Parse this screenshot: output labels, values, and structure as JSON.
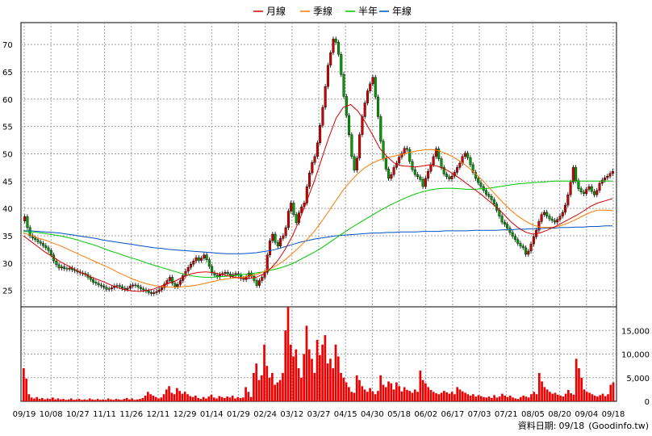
{
  "chart_data": {
    "type": "candlestick",
    "legend": [
      {
        "name": "月線",
        "color": "#d40000"
      },
      {
        "name": "季線",
        "color": "#ff7a00"
      },
      {
        "name": "半年",
        "color": "#00c800"
      },
      {
        "name": "年線",
        "color": "#0050c8"
      }
    ],
    "price_axis": {
      "ticks": [
        "25",
        "30",
        "35",
        "40",
        "45",
        "50",
        "55",
        "60",
        "65",
        "70"
      ],
      "range": [
        22,
        74
      ]
    },
    "volume_axis": {
      "ticks": [
        "0",
        "5,000",
        "10,000",
        "15,000"
      ],
      "range": [
        0,
        20000
      ]
    },
    "x_labels": [
      "09/19",
      "10/08",
      "10/27",
      "11/11",
      "11/26",
      "12/11",
      "12/29",
      "01/14",
      "01/29",
      "02/24",
      "03/12",
      "03/27",
      "04/15",
      "04/30",
      "05/18",
      "06/02",
      "06/17",
      "07/03",
      "07/21",
      "08/05",
      "08/20",
      "09/04",
      "09/18"
    ],
    "close": [
      38.5,
      36.5,
      35.0,
      34.6,
      34.3,
      33.9,
      33.6,
      33.2,
      32.8,
      32.3,
      31.5,
      30.4,
      29.7,
      29.1,
      29.3,
      29.0,
      28.9,
      29.1,
      28.8,
      28.6,
      28.4,
      28.2,
      28.1,
      27.9,
      27.4,
      27.0,
      26.5,
      26.3,
      26.0,
      25.8,
      25.6,
      25.2,
      25.3,
      25.5,
      25.8,
      25.9,
      25.7,
      25.4,
      25.2,
      25.4,
      25.8,
      26.0,
      25.9,
      25.6,
      25.3,
      25.1,
      24.9,
      24.6,
      24.4,
      24.6,
      24.8,
      25.1,
      25.5,
      26.2,
      26.8,
      27.4,
      26.3,
      25.7,
      26.1,
      26.8,
      27.7,
      28.5,
      29.2,
      29.8,
      30.4,
      31.0,
      30.5,
      30.9,
      31.5,
      30.6,
      29.4,
      28.2,
      27.8,
      27.5,
      27.9,
      28.1,
      28.3,
      28.0,
      27.6,
      27.9,
      28.1,
      27.8,
      27.2,
      27.0,
      27.5,
      28.2,
      27.6,
      26.8,
      25.9,
      26.8,
      27.4,
      28.3,
      31.5,
      34.1,
      35.3,
      33.8,
      33.1,
      34.5,
      35.0,
      36.5,
      39.5,
      41.0,
      38.9,
      37.4,
      39.2,
      40.3,
      41.0,
      44.0,
      46.5,
      48.4,
      49.5,
      52.0,
      55.2,
      58.5,
      62.3,
      66.2,
      68.5,
      71.0,
      70.4,
      68.2,
      64.5,
      60.5,
      57.0,
      53.5,
      49.5,
      47.0,
      49.2,
      53.5,
      56.8,
      59.3,
      61.5,
      62.8,
      64.0,
      60.4,
      56.8,
      52.3,
      49.1,
      47.2,
      45.5,
      46.2,
      47.5,
      48.3,
      49.4,
      50.1,
      51.0,
      50.8,
      48.6,
      47.1,
      46.2,
      45.8,
      45.3,
      44.0,
      45.5,
      46.8,
      48.0,
      49.5,
      50.9,
      49.1,
      47.5,
      46.3,
      45.8,
      45.4,
      45.9,
      46.6,
      47.5,
      48.3,
      49.5,
      50.1,
      49.3,
      48.0,
      46.6,
      45.5,
      44.7,
      44.0,
      43.3,
      42.6,
      42.2,
      41.6,
      40.8,
      39.7,
      38.6,
      37.5,
      37.1,
      36.4,
      35.6,
      34.9,
      34.3,
      33.6,
      33.1,
      32.8,
      31.6,
      32.2,
      33.5,
      34.8,
      36.0,
      37.6,
      38.9,
      39.3,
      38.6,
      38.1,
      37.8,
      37.5,
      38.0,
      38.6,
      39.3,
      40.6,
      42.5,
      44.8,
      47.5,
      45.1,
      43.6,
      43.0,
      42.7,
      43.5,
      44.0,
      43.1,
      42.5,
      43.3,
      44.6,
      45.2,
      45.6,
      45.9,
      46.4,
      46.8
    ],
    "ma_month": [
      35.0,
      34.0,
      33.0,
      32.0,
      31.2,
      30.3,
      29.6,
      28.9,
      28.2,
      27.6,
      27.1,
      26.6,
      26.0,
      25.5,
      25.1,
      24.9,
      24.8,
      25.0,
      25.3,
      25.8,
      26.3,
      26.8,
      27.5,
      28.0,
      28.3,
      28.4,
      28.3,
      28.0,
      27.7,
      27.4,
      27.2,
      27.2,
      27.4,
      28.0,
      29.0,
      30.5,
      32.5,
      35.0,
      38.0,
      41.5,
      45.0,
      49.0,
      53.0,
      56.5,
      58.5,
      59.0,
      57.8,
      55.8,
      53.5,
      51.0,
      49.5,
      48.3,
      47.8,
      47.7,
      47.6,
      47.8,
      48.0,
      47.7,
      47.2,
      46.4,
      45.5,
      44.5,
      43.5,
      42.5,
      41.4,
      40.3,
      39.0,
      37.6,
      36.5,
      35.7,
      35.3,
      35.5,
      36.0,
      36.6,
      37.3,
      38.0,
      38.7,
      39.5,
      40.4,
      41.0,
      41.4,
      41.8
    ],
    "ma_quarter": [
      35.5,
      35.1,
      34.6,
      34.2,
      33.7,
      33.2,
      32.6,
      32.0,
      31.4,
      30.8,
      30.2,
      29.6,
      29.0,
      28.3,
      27.7,
      27.1,
      26.6,
      26.2,
      25.9,
      25.7,
      25.6,
      25.6,
      25.7,
      25.8,
      26.0,
      26.3,
      26.6,
      26.9,
      27.1,
      27.3,
      27.4,
      27.6,
      27.9,
      28.4,
      29.0,
      29.7,
      30.6,
      31.8,
      33.0,
      34.3,
      35.8,
      37.6,
      39.5,
      41.5,
      43.4,
      45.0,
      46.4,
      47.5,
      48.3,
      48.9,
      49.3,
      49.6,
      49.9,
      50.2,
      50.5,
      50.7,
      50.8,
      50.6,
      50.1,
      49.5,
      48.7,
      47.7,
      46.6,
      45.3,
      43.9,
      42.4,
      41.0,
      39.7,
      38.6,
      37.7,
      37.0,
      36.6,
      36.5,
      36.6,
      36.9,
      37.4,
      38.0,
      38.7,
      39.3,
      39.7,
      39.7,
      39.6
    ],
    "ma_half": [
      35.8,
      35.7,
      35.6,
      35.4,
      35.2,
      35.0,
      34.7,
      34.4,
      34.0,
      33.6,
      33.2,
      32.7,
      32.2,
      31.8,
      31.3,
      30.9,
      30.5,
      30.0,
      29.6,
      29.2,
      28.8,
      28.4,
      28.0,
      27.7,
      27.5,
      27.4,
      27.4,
      27.5,
      27.6,
      27.7,
      27.9,
      28.0,
      28.2,
      28.4,
      28.7,
      29.0,
      29.4,
      29.9,
      30.6,
      31.3,
      32.0,
      32.8,
      33.7,
      34.6,
      35.5,
      36.4,
      37.2,
      38.0,
      38.8,
      39.6,
      40.3,
      41.0,
      41.6,
      42.2,
      42.7,
      43.1,
      43.4,
      43.6,
      43.7,
      43.7,
      43.6,
      43.5,
      43.5,
      43.6,
      43.7,
      43.9,
      44.1,
      44.3,
      44.5,
      44.6,
      44.7,
      44.8,
      44.9,
      45.0,
      45.0,
      45.0,
      45.0,
      45.0,
      45.0,
      45.0,
      45.0,
      45.0
    ],
    "ma_year": [
      35.9,
      35.9,
      35.8,
      35.7,
      35.6,
      35.5,
      35.3,
      35.1,
      34.9,
      34.7,
      34.5,
      34.2,
      34.0,
      33.8,
      33.6,
      33.4,
      33.2,
      33.0,
      32.8,
      32.7,
      32.5,
      32.4,
      32.3,
      32.2,
      32.1,
      32.0,
      31.9,
      31.8,
      31.7,
      31.7,
      31.7,
      31.8,
      31.9,
      32.1,
      32.3,
      32.6,
      33.0,
      33.4,
      33.8,
      34.1,
      34.4,
      34.6,
      34.8,
      35.0,
      35.1,
      35.2,
      35.3,
      35.4,
      35.5,
      35.5,
      35.6,
      35.6,
      35.7,
      35.7,
      35.7,
      35.8,
      35.8,
      35.8,
      35.9,
      35.9,
      35.9,
      35.9,
      36.0,
      36.0,
      36.0,
      36.0,
      36.1,
      36.1,
      36.2,
      36.2,
      36.3,
      36.3,
      36.4,
      36.4,
      36.5,
      36.5,
      36.6,
      36.6,
      36.7,
      36.7,
      36.8,
      36.8
    ],
    "volume_series": [
      7000,
      4800,
      1500,
      800,
      600,
      900,
      500,
      700,
      400,
      600,
      500,
      800,
      400,
      600,
      400,
      500,
      300,
      400,
      600,
      300,
      400,
      500,
      300,
      400,
      300,
      600,
      400,
      300,
      500,
      300,
      400,
      300,
      600,
      400,
      300,
      500,
      400,
      300,
      500,
      700,
      400,
      600,
      300,
      400,
      500,
      700,
      1200,
      2000,
      1500,
      1200,
      900,
      600,
      800,
      1500,
      2500,
      3200,
      1800,
      1500,
      2800,
      2200,
      1600,
      2000,
      1500,
      1100,
      900,
      1200,
      700,
      500,
      900,
      600,
      1000,
      1400,
      800,
      600,
      1100,
      900,
      700,
      1000,
      800,
      1200,
      600,
      900,
      700,
      800,
      3000,
      2000,
      900,
      6000,
      8000,
      4500,
      5500,
      12000,
      7500,
      5000,
      6000,
      3500,
      4000,
      4500,
      6000,
      15000,
      22000,
      12000,
      9500,
      11000,
      7000,
      5000,
      10000,
      16000,
      11000,
      9000,
      6000,
      13000,
      9800,
      12000,
      14000,
      8000,
      9000,
      7000,
      12000,
      9500,
      6000,
      5000,
      4000,
      3000,
      2000,
      1800,
      5500,
      4500,
      3200,
      2500,
      2000,
      2800,
      2100,
      1500,
      2200,
      5500,
      3500,
      3000,
      4200,
      3800,
      2500,
      4000,
      3200,
      2100,
      3000,
      2400,
      2200,
      1800,
      2500,
      2000,
      6500,
      4500,
      3800,
      3000,
      2400,
      2000,
      1700,
      1500,
      1800,
      2200,
      1900,
      1600,
      2000,
      1500,
      3000,
      2500,
      2100,
      1800,
      1500,
      1200,
      1500,
      1000,
      1300,
      1100,
      900,
      800,
      1000,
      700,
      1300,
      800,
      1000,
      1600,
      1200,
      900,
      1200,
      800,
      600,
      500,
      900,
      1200,
      1000,
      800,
      1500,
      2000,
      1500,
      6000,
      4200,
      3000,
      2500,
      2000,
      1600,
      1800,
      1400,
      1200,
      1000,
      1600,
      2400,
      1700,
      1400,
      9000,
      7000,
      5000,
      2500,
      2000,
      1800,
      1500,
      1200,
      1000,
      1300,
      1600,
      1100,
      1500,
      3500,
      4000
    ]
  },
  "footer": {
    "prefix": "資料日期:",
    "date": "09/18",
    "source": "(Goodinfo.tw)"
  }
}
